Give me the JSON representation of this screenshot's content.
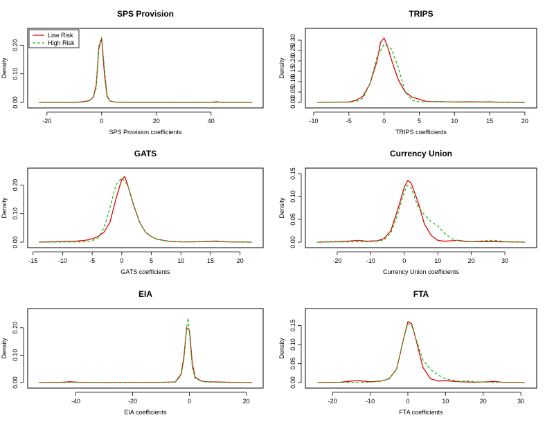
{
  "chart_data": [
    {
      "type": "line",
      "title": "SPS Provision",
      "xlabel": "SPS Provision coefficients",
      "ylabel": "Density",
      "xlim": [
        -24,
        56
      ],
      "ylim": [
        0,
        0.24
      ],
      "xticks": [
        -20,
        0,
        20,
        40
      ],
      "yticks": [
        0.0,
        0.1,
        0.2
      ],
      "legend": {
        "position": "top-left",
        "entries": [
          "Low Risk",
          "High Risk"
        ]
      },
      "series": [
        {
          "name": "Low Risk",
          "color": "#dd0000",
          "style": "solid",
          "x": [
            -23,
            -10,
            -7,
            -5,
            -4,
            -3,
            -2,
            -1,
            0,
            1,
            2,
            3,
            5,
            10,
            20,
            30,
            40,
            42,
            44,
            55
          ],
          "y": [
            0,
            0,
            0.002,
            0.005,
            0.01,
            0.02,
            0.06,
            0.19,
            0.225,
            0.1,
            0.02,
            0.005,
            0.001,
            0,
            0,
            0,
            0,
            0.002,
            0,
            0
          ]
        },
        {
          "name": "High Risk",
          "color": "#22bb22",
          "style": "dashed",
          "x": [
            -23,
            -10,
            -7,
            -5,
            -4,
            -3,
            -2,
            -1,
            0,
            1,
            2,
            3,
            5,
            10,
            20,
            30,
            40,
            55
          ],
          "y": [
            0,
            0,
            0.001,
            0.004,
            0.008,
            0.02,
            0.05,
            0.2,
            0.228,
            0.12,
            0.025,
            0.005,
            0.001,
            0,
            0,
            0,
            0,
            0
          ]
        }
      ]
    },
    {
      "type": "line",
      "title": "TRIPS",
      "xlabel": "TRIPS coefficients",
      "ylabel": "Density",
      "xlim": [
        -10,
        20.5
      ],
      "ylim": [
        0,
        0.33
      ],
      "xticks": [
        -10,
        -5,
        0,
        5,
        10,
        15,
        20
      ],
      "yticks": [
        0.0,
        0.05,
        0.1,
        0.15,
        0.2,
        0.25,
        0.3
      ],
      "series": [
        {
          "name": "Low Risk",
          "color": "#dd0000",
          "style": "solid",
          "x": [
            -9.5,
            -5,
            -4,
            -3,
            -2,
            -1,
            -0.5,
            0,
            0.5,
            1,
            2,
            3,
            4,
            5,
            6,
            8,
            10,
            12,
            14,
            15,
            16,
            20
          ],
          "y": [
            0,
            0.002,
            0.01,
            0.03,
            0.09,
            0.2,
            0.29,
            0.31,
            0.27,
            0.21,
            0.11,
            0.05,
            0.025,
            0.015,
            0.005,
            0.003,
            0.002,
            0.003,
            0.002,
            0.003,
            0.001,
            0
          ]
        },
        {
          "name": "High Risk",
          "color": "#22bb22",
          "style": "dashed",
          "x": [
            -9.5,
            -5,
            -4,
            -3,
            -2,
            -1,
            0,
            1,
            2,
            3,
            4,
            5,
            8,
            10,
            12,
            15,
            20
          ],
          "y": [
            0,
            0.001,
            0.005,
            0.02,
            0.09,
            0.22,
            0.28,
            0.26,
            0.17,
            0.05,
            0.01,
            0.002,
            0.005,
            0.001,
            0.001,
            0.001,
            0
          ]
        }
      ]
    },
    {
      "type": "line",
      "title": "GATS",
      "xlabel": "GATS coefficients",
      "ylabel": "Density",
      "xlim": [
        -14.5,
        22.5
      ],
      "ylim": [
        0,
        0.24
      ],
      "xticks": [
        -15,
        -10,
        -5,
        0,
        5,
        10,
        15,
        20
      ],
      "yticks": [
        0.0,
        0.1,
        0.2
      ],
      "series": [
        {
          "name": "Low Risk",
          "color": "#dd0000",
          "style": "solid",
          "x": [
            -14,
            -10,
            -8,
            -6,
            -5,
            -4,
            -3,
            -2,
            -1,
            0,
            0.5,
            1,
            2,
            3,
            4,
            5,
            6,
            8,
            10,
            12,
            16,
            17,
            18,
            22
          ],
          "y": [
            0,
            0.002,
            0.003,
            0.007,
            0.012,
            0.02,
            0.035,
            0.07,
            0.15,
            0.22,
            0.23,
            0.2,
            0.13,
            0.07,
            0.035,
            0.02,
            0.01,
            0.003,
            0.001,
            0.001,
            0.004,
            0.002,
            0.001,
            0
          ]
        },
        {
          "name": "High Risk",
          "color": "#22bb22",
          "style": "dashed",
          "x": [
            -14,
            -6,
            -5,
            -4,
            -3,
            -2,
            -1,
            0,
            1,
            2,
            3,
            4,
            5,
            6,
            8,
            10,
            16,
            22
          ],
          "y": [
            0,
            0.001,
            0.005,
            0.015,
            0.05,
            0.12,
            0.2,
            0.225,
            0.2,
            0.13,
            0.07,
            0.035,
            0.02,
            0.01,
            0.003,
            0.001,
            0.002,
            0
          ]
        }
      ]
    },
    {
      "type": "line",
      "title": "Currency Union",
      "xlabel": "Currency Union coefficients",
      "ylabel": "Density",
      "xlim": [
        -27,
        37
      ],
      "ylim": [
        0,
        0.15
      ],
      "xticks": [
        -20,
        -10,
        0,
        10,
        20,
        30
      ],
      "yticks": [
        0.0,
        0.05,
        0.1,
        0.15
      ],
      "series": [
        {
          "name": "Low Risk",
          "color": "#dd0000",
          "style": "solid",
          "x": [
            -26,
            -20,
            -17,
            -14,
            -11,
            -8,
            -6,
            -4,
            -2,
            0,
            1,
            2,
            4,
            6,
            8,
            10,
            12,
            14,
            16,
            18,
            20,
            24,
            27,
            36
          ],
          "y": [
            0,
            0.001,
            0.002,
            0.004,
            0.002,
            0.003,
            0.008,
            0.025,
            0.07,
            0.12,
            0.135,
            0.13,
            0.09,
            0.04,
            0.015,
            0.004,
            0.002,
            0.003,
            0.004,
            0.002,
            0.001,
            0.001,
            0.001,
            0
          ]
        },
        {
          "name": "High Risk",
          "color": "#22bb22",
          "style": "dashed",
          "x": [
            -26,
            -10,
            -8,
            -6,
            -4,
            -2,
            0,
            1,
            2,
            4,
            6,
            8,
            10,
            12,
            14,
            16,
            18,
            20,
            24,
            27,
            30,
            36
          ],
          "y": [
            0,
            0.001,
            0.002,
            0.005,
            0.02,
            0.06,
            0.11,
            0.125,
            0.12,
            0.08,
            0.06,
            0.045,
            0.035,
            0.02,
            0.008,
            0.003,
            0.001,
            0.001,
            0.003,
            0.004,
            0.001,
            0
          ]
        }
      ]
    },
    {
      "type": "line",
      "title": "EIA",
      "xlabel": "EIA coefficients",
      "ylabel": "Density",
      "xlim": [
        -54,
        23
      ],
      "ylim": [
        0,
        0.25
      ],
      "xticks": [
        -40,
        -20,
        0,
        20
      ],
      "yticks": [
        0.0,
        0.1,
        0.2
      ],
      "series": [
        {
          "name": "Low Risk",
          "color": "#dd0000",
          "style": "solid",
          "x": [
            -53,
            -45,
            -42,
            -39,
            -30,
            -10,
            -5,
            -3,
            -2,
            -1,
            0,
            1,
            2,
            4,
            6,
            10,
            15,
            22
          ],
          "y": [
            0,
            0.001,
            0.003,
            0.001,
            0,
            0.001,
            0.002,
            0.03,
            0.09,
            0.2,
            0.19,
            0.07,
            0.02,
            0.006,
            0.003,
            0.002,
            0.001,
            0
          ]
        },
        {
          "name": "High Risk",
          "color": "#22bb22",
          "style": "dashed",
          "x": [
            -53,
            -10,
            -5,
            -3,
            -2,
            -1,
            -0.5,
            0,
            1,
            2,
            4,
            6,
            10,
            22
          ],
          "y": [
            0,
            0.001,
            0.002,
            0.025,
            0.08,
            0.2,
            0.235,
            0.18,
            0.055,
            0.015,
            0.006,
            0.003,
            0.001,
            0
          ]
        }
      ]
    },
    {
      "type": "line",
      "title": "FTA",
      "xlabel": "FTA coefficients",
      "ylabel": "Density",
      "xlim": [
        -25,
        32
      ],
      "ylim": [
        0,
        0.18
      ],
      "xticks": [
        -20,
        -10,
        0,
        10,
        20,
        30
      ],
      "yticks": [
        0.0,
        0.05,
        0.1,
        0.15
      ],
      "series": [
        {
          "name": "Low Risk",
          "color": "#dd0000",
          "style": "solid",
          "x": [
            -24,
            -18,
            -15,
            -13,
            -10,
            -7,
            -5,
            -3,
            -1,
            0,
            1,
            2,
            4,
            6,
            8,
            10,
            14,
            18,
            21,
            23,
            25,
            31
          ],
          "y": [
            0,
            0.001,
            0.004,
            0.005,
            0.002,
            0.004,
            0.01,
            0.035,
            0.12,
            0.16,
            0.155,
            0.12,
            0.04,
            0.01,
            0.004,
            0.005,
            0.002,
            0.001,
            0.002,
            0.003,
            0.001,
            0
          ]
        },
        {
          "name": "High Risk",
          "color": "#22bb22",
          "style": "dashed",
          "x": [
            -24,
            -10,
            -7,
            -5,
            -3,
            -1,
            0,
            1,
            2,
            4,
            6,
            8,
            10,
            12,
            14,
            16,
            18,
            22,
            31
          ],
          "y": [
            0,
            0.001,
            0.004,
            0.01,
            0.035,
            0.12,
            0.155,
            0.15,
            0.12,
            0.06,
            0.035,
            0.02,
            0.01,
            0.006,
            0.003,
            0.004,
            0.002,
            0.001,
            0
          ]
        }
      ]
    }
  ]
}
